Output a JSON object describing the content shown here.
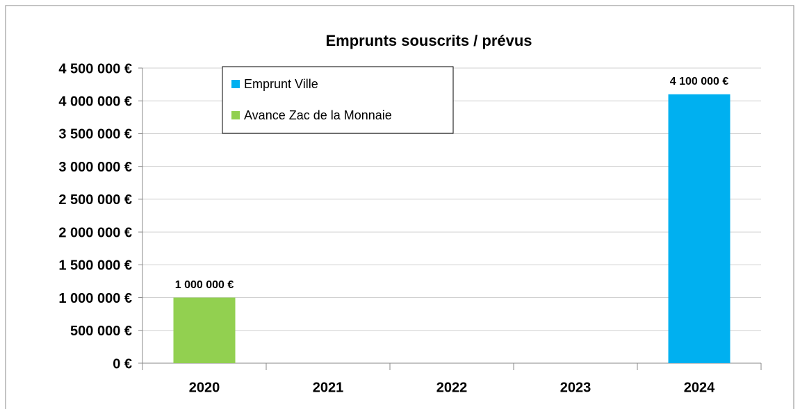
{
  "chart_data": {
    "type": "bar",
    "title": "Emprunts souscrits / prévus",
    "categories": [
      "2020",
      "2021",
      "2022",
      "2023",
      "2024"
    ],
    "series": [
      {
        "name": "Emprunt Ville",
        "color": "#00b0f0",
        "values": [
          null,
          null,
          null,
          null,
          4100000
        ],
        "value_labels": [
          null,
          null,
          null,
          null,
          "4 100 000 €"
        ]
      },
      {
        "name": "Avance Zac de la Monnaie",
        "color": "#92d050",
        "values": [
          1000000,
          null,
          null,
          null,
          null
        ],
        "value_labels": [
          "1 000 000 €",
          null,
          null,
          null,
          null
        ]
      }
    ],
    "stacked": true,
    "ylim": [
      0,
      4500000
    ],
    "yticks": [
      {
        "value": 0,
        "label": "0 €"
      },
      {
        "value": 500000,
        "label": "500 000 €"
      },
      {
        "value": 1000000,
        "label": "1 000 000 €"
      },
      {
        "value": 1500000,
        "label": "1 500 000 €"
      },
      {
        "value": 2000000,
        "label": "2 000 000 €"
      },
      {
        "value": 2500000,
        "label": "2 500 000 €"
      },
      {
        "value": 3000000,
        "label": "3 000 000 €"
      },
      {
        "value": 3500000,
        "label": "3 500 000 €"
      },
      {
        "value": 4000000,
        "label": "4 000 000 €"
      },
      {
        "value": 4500000,
        "label": "4 500 000 €"
      }
    ],
    "grid": true,
    "legend": "top-left"
  }
}
